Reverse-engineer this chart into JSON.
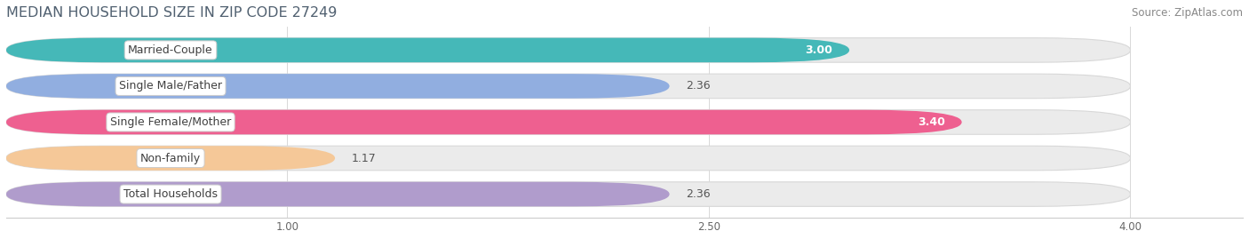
{
  "title": "MEDIAN HOUSEHOLD SIZE IN ZIP CODE 27249",
  "source": "Source: ZipAtlas.com",
  "categories": [
    "Married-Couple",
    "Single Male/Father",
    "Single Female/Mother",
    "Non-family",
    "Total Households"
  ],
  "values": [
    3.0,
    2.36,
    3.4,
    1.17,
    2.36
  ],
  "bar_colors": [
    "#45b8b8",
    "#91aee0",
    "#ee6090",
    "#f5c898",
    "#b09ccc"
  ],
  "bar_border_colors": [
    "#38a0a0",
    "#7090c8",
    "#d84070",
    "#e0a870",
    "#9878b8"
  ],
  "value_labels": [
    "3.00",
    "2.36",
    "3.40",
    "1.17",
    "2.36"
  ],
  "value_label_inside": [
    true,
    false,
    true,
    false,
    false
  ],
  "xlim_min": 0,
  "xlim_max": 4.4,
  "xaxis_max": 4.0,
  "xticks": [
    1.0,
    2.5,
    4.0
  ],
  "xtick_labels": [
    "1.00",
    "2.50",
    "4.00"
  ],
  "background_color": "#ffffff",
  "bar_bg_color": "#ebebeb",
  "bar_height": 0.68,
  "bar_gap": 0.32,
  "title_fontsize": 11.5,
  "label_fontsize": 9,
  "value_fontsize": 9,
  "source_fontsize": 8.5
}
